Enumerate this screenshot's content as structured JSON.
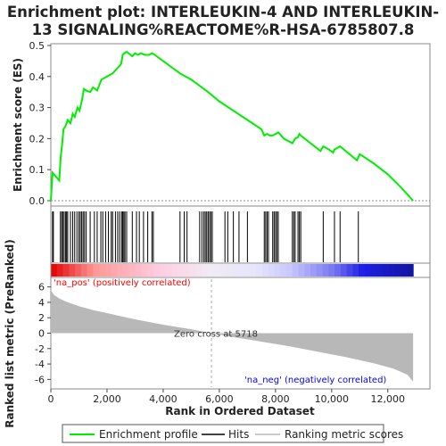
{
  "title_line1": "Enrichment plot: INTERLEUKIN-4 AND INTERLEUKIN-",
  "title_line2": "13 SIGNALING%REACTOME%R-HSA-6785807.8",
  "colors": {
    "es_line": "#00ee00",
    "hits": "#000000",
    "metric_fill": "#b8b8b8",
    "pos_text": "#ff0000",
    "neg_text": "#0000ff",
    "zero_line": "#aaaaaa"
  },
  "chart_data": [
    {
      "type": "line",
      "name": "enrichment-profile",
      "ylabel": "Enrichment score (ES)",
      "xlim": [
        0,
        13500
      ],
      "ylim": [
        0,
        0.5
      ],
      "yticks": [
        "0.0",
        "0.1",
        "0.2",
        "0.3",
        "0.4",
        "0.5"
      ],
      "grid": false,
      "x": [
        0,
        60,
        300,
        350,
        400,
        450,
        520,
        600,
        700,
        780,
        850,
        950,
        1020,
        1100,
        1180,
        1250,
        1400,
        1500,
        1650,
        1800,
        1900,
        2000,
        2100,
        2200,
        2300,
        2400,
        2500,
        2560,
        2620,
        2700,
        2900,
        3000,
        3100,
        3200,
        3350,
        3500,
        3600,
        3700,
        4600,
        4800,
        5000,
        5300,
        5600,
        5800,
        6000,
        6500,
        7000,
        7500,
        7600,
        7700,
        7800,
        7900,
        8000,
        8100,
        8300,
        8500,
        8600,
        8700,
        8800,
        8850,
        8900,
        9600,
        9700,
        9900,
        10050,
        10100,
        10200,
        10300,
        10900,
        11000,
        11500,
        12000,
        12500,
        12900
      ],
      "y": [
        0.0,
        0.09,
        0.065,
        0.14,
        0.18,
        0.23,
        0.24,
        0.26,
        0.25,
        0.28,
        0.27,
        0.3,
        0.29,
        0.32,
        0.36,
        0.355,
        0.35,
        0.365,
        0.355,
        0.39,
        0.395,
        0.4,
        0.405,
        0.41,
        0.42,
        0.43,
        0.44,
        0.47,
        0.475,
        0.48,
        0.465,
        0.475,
        0.47,
        0.475,
        0.47,
        0.47,
        0.475,
        0.47,
        0.41,
        0.4,
        0.39,
        0.37,
        0.35,
        0.335,
        0.32,
        0.29,
        0.26,
        0.23,
        0.21,
        0.215,
        0.21,
        0.21,
        0.215,
        0.22,
        0.2,
        0.19,
        0.185,
        0.2,
        0.205,
        0.215,
        0.21,
        0.16,
        0.175,
        0.165,
        0.155,
        0.165,
        0.17,
        0.175,
        0.13,
        0.15,
        0.12,
        0.085,
        0.04,
        0.0
      ]
    },
    {
      "type": "hits",
      "name": "hits",
      "xlim": [
        0,
        13500
      ],
      "positions": [
        60,
        90,
        340,
        390,
        420,
        470,
        520,
        560,
        600,
        700,
        780,
        850,
        930,
        1000,
        1050,
        1100,
        1150,
        1200,
        1260,
        1400,
        1550,
        1650,
        1780,
        1850,
        1950,
        2050,
        2150,
        2200,
        2300,
        2380,
        2450,
        2520,
        2560,
        2600,
        2640,
        2700,
        2900,
        3050,
        3150,
        3300,
        3450,
        3600,
        3650,
        4600,
        4750,
        4850,
        5300,
        5380,
        5450,
        5500,
        5550,
        5600,
        5650,
        5700,
        5750,
        6200,
        6300,
        6500,
        6700,
        7000,
        7600,
        7650,
        7700,
        7750,
        7900,
        7950,
        8000,
        8050,
        8100,
        8600,
        8650,
        8700,
        8800,
        8850,
        8900,
        9700,
        10100,
        10300,
        10950
      ]
    },
    {
      "type": "area",
      "name": "ranked-list-metric",
      "ylabel": "Ranked list metric (PreRanked)",
      "xlabel": "Rank in Ordered Dataset",
      "xlim": [
        0,
        13500
      ],
      "ylim": [
        -7,
        7
      ],
      "xticks": [
        "0",
        "2,000",
        "4,000",
        "6,000",
        "8,000",
        "10,000",
        "12,000"
      ],
      "xtick_values": [
        0,
        2000,
        4000,
        6000,
        8000,
        10000,
        12000
      ],
      "yticks": [
        "6",
        "4",
        "2",
        "0",
        "-2",
        "-4",
        "-6"
      ],
      "ytick_values": [
        6,
        4,
        2,
        0,
        -2,
        -4,
        -6
      ],
      "x": [
        0,
        100,
        300,
        600,
        1000,
        1500,
        2000,
        3000,
        4000,
        5000,
        5718,
        6500,
        7500,
        8500,
        9500,
        10500,
        11500,
        12200,
        12700,
        12900
      ],
      "y": [
        5.6,
        5.0,
        4.5,
        4.0,
        3.5,
        3.0,
        2.6,
        1.8,
        1.1,
        0.5,
        0.0,
        -0.5,
        -1.1,
        -1.7,
        -2.4,
        -3.1,
        -3.9,
        -4.6,
        -5.4,
        -6.3
      ],
      "zero_cross": 5718,
      "pos_label": "'na_pos' (positively correlated)",
      "neg_label": "'na_neg' (negatively correlated)",
      "zero_label": "Zero cross at 5718"
    }
  ],
  "legend": {
    "items": [
      {
        "label": "Enrichment profile",
        "color": "#00ee00",
        "style": "line"
      },
      {
        "label": "Hits",
        "color": "#000000",
        "style": "line"
      },
      {
        "label": "Ranking metric scores",
        "color": "#b8b8b8",
        "style": "line"
      }
    ]
  }
}
